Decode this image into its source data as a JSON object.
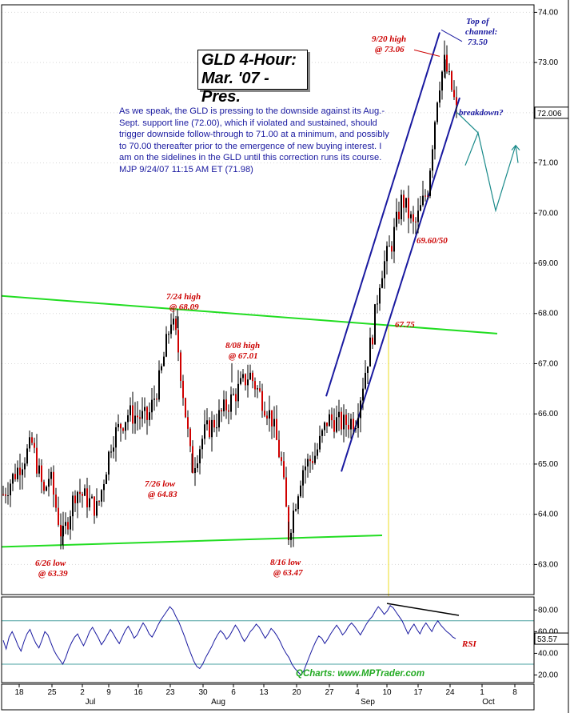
{
  "chart_data": {
    "type": "candlestick",
    "title": "GLD 4-Hour: Mar. '07 -Pres.",
    "title_lines": [
      "GLD 4-Hour:",
      "Mar. '07 -Pres."
    ],
    "commentary": "As we speak, the GLD is pressing to the downside against its Aug.-Sept. support line (72.00), which if violated and sustained, should trigger downside follow-through to 71.00 at a minimum, and possibly to 70.00 thereafter prior to the emergence of new buying interest. I am on the sidelines in the GLD until this correction runs its course. MJP  9/24/07 11:15 AM ET (71.98)",
    "price_axis": {
      "ylim": [
        62.4,
        74.15
      ],
      "ticks": [
        "63.00",
        "64.00",
        "65.00",
        "66.00",
        "67.00",
        "68.00",
        "69.00",
        "70.00",
        "71.00",
        "72.00",
        "73.00",
        "74.00"
      ],
      "last_value": "72.006"
    },
    "x_axis": {
      "tick_labels": [
        "18",
        "25",
        "2",
        "9",
        "16",
        "23",
        "30",
        "6",
        "13",
        "20",
        "27",
        "4",
        "10",
        "17",
        "24",
        "1",
        "8"
      ],
      "month_labels": [
        "Jul",
        "Aug",
        "Sep",
        "Oct"
      ]
    },
    "key_points": [
      {
        "date": "6/26",
        "value": 63.39,
        "label": [
          "6/26 low",
          "@ 63.39"
        ]
      },
      {
        "date": "7/24",
        "value": 68.09,
        "label": [
          "7/24 high",
          "@ 68.09"
        ]
      },
      {
        "date": "7/26",
        "value": 64.83,
        "label": [
          "7/26 low",
          "@ 64.83"
        ]
      },
      {
        "date": "8/08",
        "value": 67.01,
        "label": [
          "8/08 high",
          "@ 67.01"
        ]
      },
      {
        "date": "8/16",
        "value": 63.47,
        "label": [
          "8/16 low",
          "@ 63.47"
        ]
      },
      {
        "date": "9/20",
        "value": 73.06,
        "label": [
          "9/20 high",
          "@ 73.06"
        ]
      }
    ],
    "levels": [
      {
        "value": 67.75,
        "label": "67.75"
      },
      {
        "value": 69.6,
        "label": "69.60/50"
      },
      {
        "value": 73.5,
        "label": [
          "Top of",
          "channel:",
          "73.50"
        ]
      }
    ],
    "annotations": {
      "breakdown": "breakdown?"
    },
    "projection_path": [
      72.0,
      71.6,
      70.95,
      71.6,
      70.05,
      71.35,
      71.0
    ],
    "rsi": {
      "label": "RSI",
      "ylim": [
        13,
        92
      ],
      "ticks": [
        "20.00",
        "40.00",
        "60.00",
        "80.00"
      ],
      "reference_levels": [
        30,
        70
      ],
      "last_value": "53.57",
      "values": [
        52,
        44,
        55,
        60,
        54,
        47,
        42,
        51,
        58,
        62,
        55,
        49,
        45,
        52,
        60,
        57,
        50,
        43,
        38,
        34,
        30,
        36,
        44,
        50,
        55,
        58,
        52,
        47,
        53,
        60,
        64,
        59,
        54,
        48,
        52,
        57,
        62,
        58,
        53,
        49,
        55,
        61,
        65,
        60,
        54,
        57,
        63,
        68,
        64,
        58,
        55,
        60,
        66,
        71,
        75,
        79,
        83,
        80,
        74,
        69,
        62,
        55,
        47,
        40,
        33,
        28,
        26,
        30,
        36,
        41,
        46,
        52,
        57,
        61,
        58,
        53,
        56,
        61,
        66,
        62,
        56,
        51,
        55,
        60,
        63,
        67,
        64,
        59,
        54,
        58,
        63,
        60,
        56,
        51,
        45,
        40,
        36,
        30,
        26,
        23,
        20,
        24,
        31,
        38,
        45,
        51,
        56,
        54,
        49,
        53,
        58,
        62,
        66,
        62,
        57,
        60,
        65,
        68,
        65,
        61,
        57,
        62,
        67,
        71,
        74,
        79,
        83,
        80,
        76,
        79,
        84,
        82,
        78,
        74,
        70,
        64,
        58,
        63,
        67,
        62,
        58,
        64,
        68,
        64,
        60,
        66,
        70,
        66,
        63,
        60,
        58,
        55,
        53.57
      ]
    },
    "credit": "QCharts: www.MPTrader.com"
  }
}
